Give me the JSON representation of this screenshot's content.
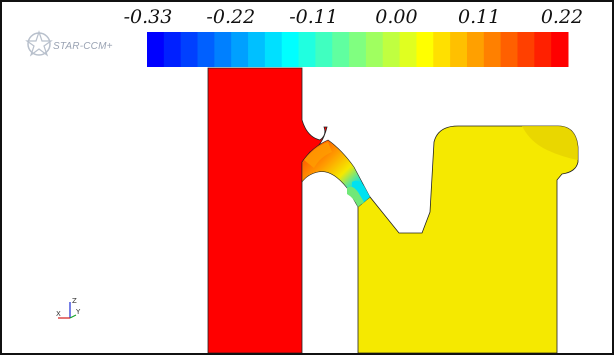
{
  "colorbar": {
    "ticks": [
      "-0.33",
      "-0.22",
      "-0.11",
      "0.00",
      "0.11",
      "0.22"
    ],
    "colors": [
      "#0000ff",
      "#0020ff",
      "#0040ff",
      "#0060ff",
      "#0080ff",
      "#00a0ff",
      "#00c0ff",
      "#00e0ff",
      "#00ffff",
      "#20ffe0",
      "#40ffc0",
      "#60ffa0",
      "#80ff80",
      "#a0ff60",
      "#c0ff40",
      "#e0ff20",
      "#ffff00",
      "#ffe000",
      "#ffc000",
      "#ffa000",
      "#ff8000",
      "#ff6000",
      "#ff4000",
      "#ff2000",
      "#ff0000"
    ]
  },
  "logo": {
    "text": "STAR-CCM+"
  },
  "triad": {
    "x_label": "X",
    "y_label": "Y",
    "z_label": "Z"
  },
  "field_colors": {
    "high": "#ff0000",
    "mid": "#f5e900",
    "transition_orange": "#ff9c00",
    "transition_cyan": "#00e2f0",
    "transition_green": "#70e878"
  }
}
